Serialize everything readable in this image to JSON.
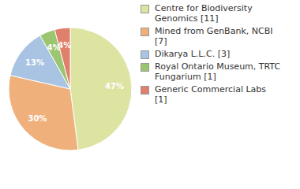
{
  "chart_data": {
    "type": "pie",
    "categories": [
      "Centre for Biodiversity Genomics [11]",
      "Mined from GenBank, NCBI [7]",
      "Dikarya L.L.C. [3]",
      "Royal Ontario Museum, TRTC Fungarium [1]",
      "Generic Commercial Labs [1]"
    ],
    "values": [
      47,
      30,
      13,
      4,
      4
    ],
    "value_labels": [
      "47%",
      "30%",
      "13%",
      "4%",
      "4%"
    ],
    "colors": [
      "#dde3a1",
      "#efb07b",
      "#a9c3e2",
      "#9cc56f",
      "#e0806b"
    ],
    "data_labels": true,
    "legend": "upper right"
  }
}
